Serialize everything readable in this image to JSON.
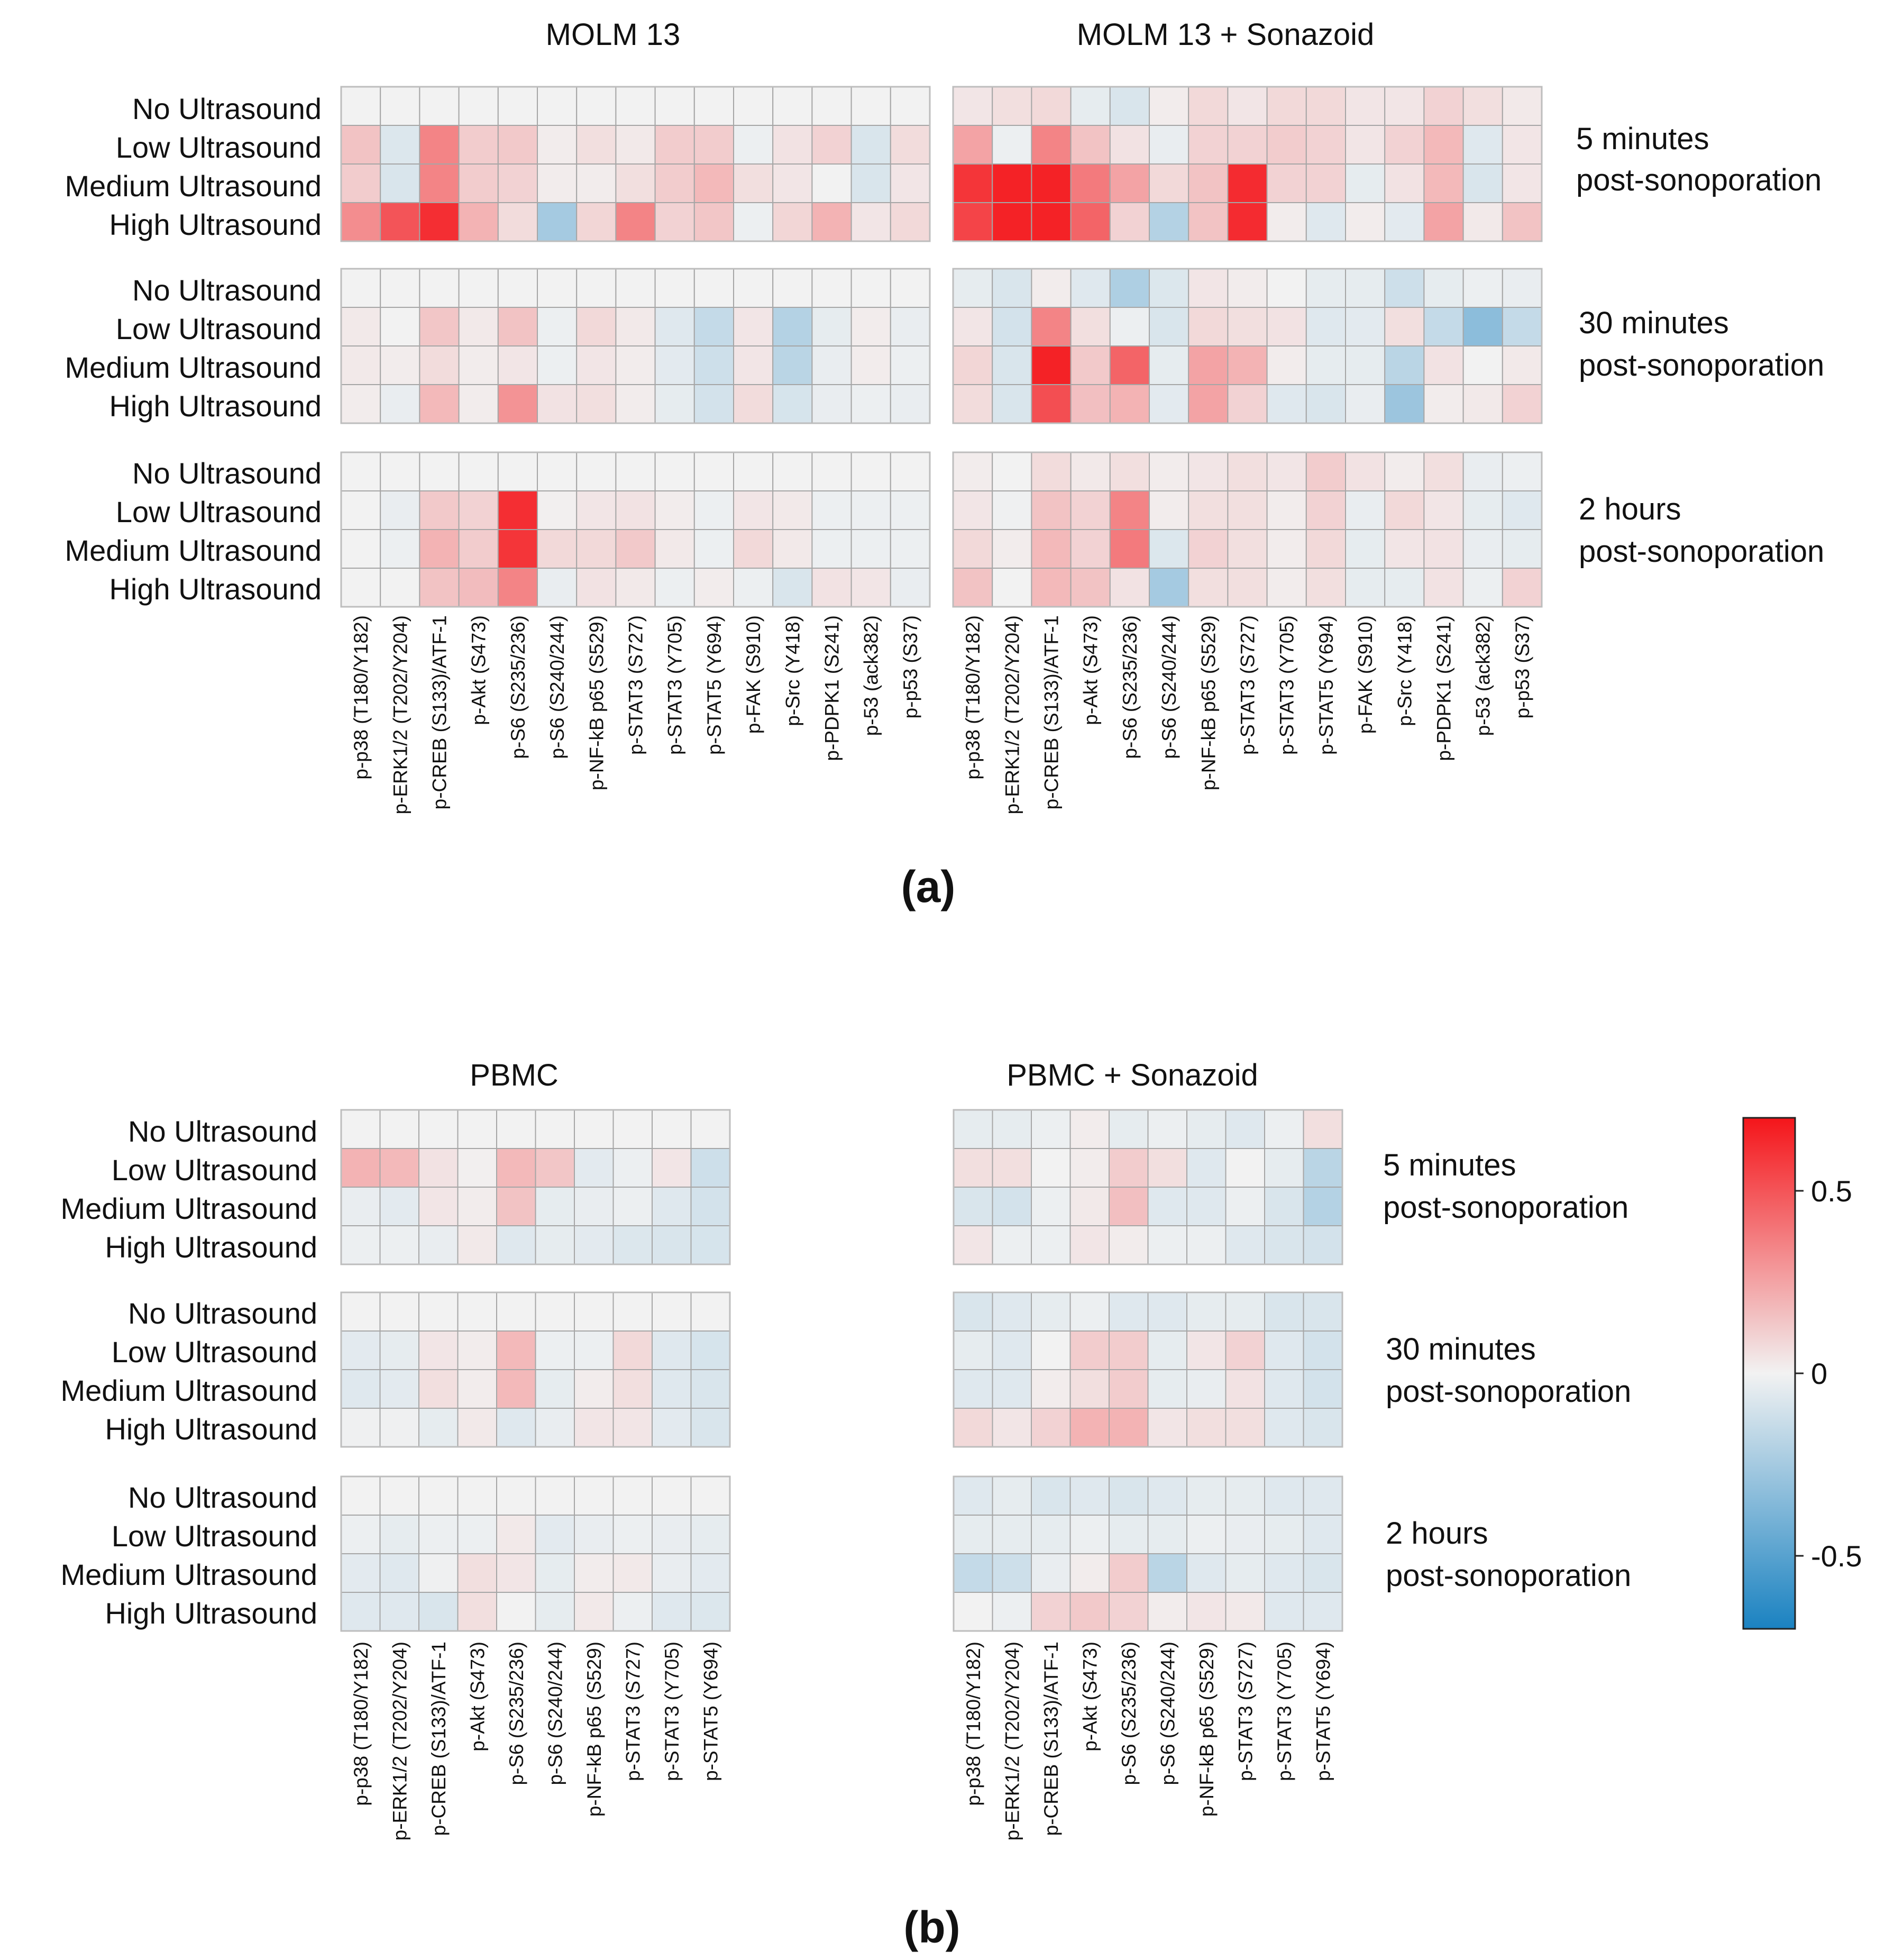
{
  "panels": {
    "a": "(a)",
    "b": "(b)"
  },
  "row_labels": [
    "No Ultrasound",
    "Low Ultrasound",
    "Medium Ultrasound",
    "High Ultrasound"
  ],
  "time_labels": [
    [
      "5 minutes",
      "post-sonoporation"
    ],
    [
      "30 minutes",
      "post-sonoporation"
    ],
    [
      "2 hours",
      "post-sonoporation"
    ]
  ],
  "colorbar": {
    "ticks": [
      0.5,
      0,
      -0.5
    ],
    "tick_labels": [
      "0.5",
      "0",
      "-0.5"
    ],
    "range": [
      -0.7,
      0.7
    ],
    "colors": {
      "neg": "#1a82c1",
      "mid": "#f2f2f2",
      "pos": "#f4151a"
    }
  },
  "chart_data": [
    {
      "type": "heatmap",
      "title": "MOLM 13",
      "columns": [
        "p-p38 (T180/Y182)",
        "p-ERK1/2 (T202/Y204)",
        "p-CREB (S133)/ATF-1",
        "p-Akt (S473)",
        "p-S6 (S235/236)",
        "p-S6 (S240/244)",
        "p-NF-kB p65 (S529)",
        "p-STAT3 (S727)",
        "p-STAT3 (Y705)",
        "p-STAT5 (Y694)",
        "p-FAK (S910)",
        "p-Src (Y418)",
        "p-PDPK1 (S241)",
        "p-53 (ack382)",
        "p-p53 (S37)"
      ],
      "blocks": [
        [
          [
            0,
            0,
            0,
            0,
            0,
            0,
            0,
            0,
            0,
            0,
            0,
            0,
            0,
            0,
            0
          ],
          [
            0.15,
            -0.07,
            0.35,
            0.12,
            0.13,
            0.02,
            0.06,
            0.03,
            0.12,
            0.12,
            -0.02,
            0.05,
            0.1,
            -0.08,
            0.07
          ],
          [
            0.12,
            -0.08,
            0.35,
            0.12,
            0.1,
            0.02,
            0.02,
            0.06,
            0.12,
            0.18,
            0.06,
            0.04,
            0.0,
            -0.08,
            0.04
          ],
          [
            0.32,
            0.5,
            0.62,
            0.2,
            0.07,
            -0.25,
            0.09,
            0.35,
            0.1,
            0.14,
            -0.02,
            0.09,
            0.2,
            0.04,
            0.08
          ]
        ],
        [
          [
            0,
            0,
            0,
            0,
            0,
            0,
            0,
            0,
            0,
            0,
            0,
            0,
            0,
            0,
            0
          ],
          [
            0.03,
            0.0,
            0.14,
            0.03,
            0.15,
            -0.02,
            0.08,
            0.03,
            -0.06,
            -0.15,
            0.04,
            -0.2,
            -0.04,
            0.02,
            -0.03
          ],
          [
            0.03,
            0.02,
            0.07,
            0.02,
            0.04,
            -0.02,
            0.04,
            0.02,
            -0.05,
            -0.12,
            0.04,
            -0.18,
            -0.03,
            0.02,
            -0.02
          ],
          [
            0.02,
            -0.03,
            0.18,
            0.02,
            0.3,
            0.05,
            0.06,
            0.02,
            -0.04,
            -0.1,
            0.07,
            -0.09,
            -0.03,
            -0.02,
            -0.03
          ]
        ],
        [
          [
            0,
            0,
            0,
            0,
            0,
            0,
            0,
            0,
            0,
            0,
            0,
            0,
            0,
            0,
            0
          ],
          [
            0.0,
            -0.03,
            0.13,
            0.1,
            0.62,
            0.01,
            0.04,
            0.05,
            0.02,
            -0.02,
            0.04,
            0.03,
            -0.02,
            -0.02,
            -0.02
          ],
          [
            0.0,
            -0.02,
            0.2,
            0.12,
            0.6,
            0.08,
            0.08,
            0.13,
            0.03,
            -0.02,
            0.08,
            0.03,
            -0.02,
            -0.02,
            -0.02
          ],
          [
            0.0,
            0.0,
            0.15,
            0.17,
            0.35,
            -0.03,
            0.05,
            0.03,
            -0.02,
            0.02,
            -0.02,
            -0.08,
            0.05,
            0.04,
            -0.03
          ]
        ]
      ]
    },
    {
      "type": "heatmap",
      "title": "MOLM 13 + Sonazoid",
      "columns": [
        "p-p38 (T180/Y182)",
        "p-ERK1/2 (T202/Y204)",
        "p-CREB (S133)/ATF-1",
        "p-Akt (S473)",
        "p-S6 (S235/236)",
        "p-S6 (S240/244)",
        "p-NF-kB p65 (S529)",
        "p-STAT3 (S727)",
        "p-STAT3 (Y705)",
        "p-STAT5 (Y694)",
        "p-FAK (S910)",
        "p-Src (Y418)",
        "p-PDPK1 (S241)",
        "p-53 (ack382)",
        "p-p53 (S37)"
      ],
      "blocks": [
        [
          [
            0.04,
            0.06,
            0.08,
            -0.04,
            -0.08,
            0.02,
            0.08,
            0.04,
            0.08,
            0.08,
            0.04,
            0.04,
            0.1,
            0.06,
            0.03
          ],
          [
            0.25,
            -0.02,
            0.35,
            0.15,
            0.05,
            -0.03,
            0.1,
            0.1,
            0.12,
            0.1,
            0.04,
            0.1,
            0.18,
            -0.06,
            0.04
          ],
          [
            0.6,
            0.66,
            0.66,
            0.38,
            0.25,
            0.08,
            0.15,
            0.63,
            0.1,
            0.1,
            -0.04,
            0.05,
            0.18,
            -0.08,
            0.04
          ],
          [
            0.55,
            0.66,
            0.66,
            0.45,
            0.1,
            -0.2,
            0.15,
            0.63,
            0.02,
            -0.06,
            0.02,
            -0.05,
            0.25,
            0.03,
            0.15
          ]
        ],
        [
          [
            -0.04,
            -0.08,
            0.02,
            -0.06,
            -0.22,
            -0.07,
            0.04,
            0.02,
            0.0,
            -0.04,
            -0.04,
            -0.12,
            -0.04,
            -0.02,
            -0.03
          ],
          [
            0.04,
            -0.1,
            0.35,
            0.06,
            -0.02,
            -0.08,
            0.08,
            0.06,
            0.05,
            -0.06,
            -0.05,
            0.06,
            -0.15,
            -0.33,
            -0.15
          ],
          [
            0.09,
            -0.08,
            0.66,
            0.13,
            0.45,
            -0.04,
            0.25,
            0.2,
            0.02,
            -0.04,
            -0.04,
            -0.18,
            0.05,
            0.0,
            0.03
          ],
          [
            0.07,
            -0.08,
            0.52,
            0.16,
            0.2,
            -0.05,
            0.25,
            0.1,
            -0.06,
            -0.08,
            -0.03,
            -0.28,
            0.02,
            0.03,
            0.1
          ]
        ],
        [
          [
            0.02,
            0.0,
            0.07,
            0.03,
            0.06,
            0.02,
            0.04,
            0.06,
            0.04,
            0.12,
            0.05,
            0.02,
            0.06,
            -0.03,
            -0.02
          ],
          [
            0.04,
            -0.01,
            0.15,
            0.1,
            0.35,
            0.02,
            0.06,
            0.06,
            0.02,
            0.1,
            -0.03,
            0.08,
            0.04,
            -0.04,
            -0.06
          ],
          [
            0.08,
            0.02,
            0.18,
            0.1,
            0.38,
            -0.07,
            0.1,
            0.06,
            0.02,
            0.08,
            -0.04,
            0.04,
            0.05,
            -0.03,
            -0.04
          ],
          [
            0.15,
            0.0,
            0.18,
            0.15,
            0.05,
            -0.25,
            0.06,
            0.06,
            0.02,
            0.06,
            -0.04,
            -0.04,
            0.05,
            -0.02,
            0.1
          ]
        ]
      ]
    },
    {
      "type": "heatmap",
      "title": "PBMC",
      "columns": [
        "p-p38 (T180/Y182)",
        "p-ERK1/2 (T202/Y204)",
        "p-CREB (S133)/ATF-1",
        "p-Akt (S473)",
        "p-S6 (S235/236)",
        "p-S6 (S240/244)",
        "p-NF-kB p65 (S529)",
        "p-STAT3 (S727)",
        "p-STAT3 (Y705)",
        "p-STAT5 (Y694)"
      ],
      "blocks": [
        [
          [
            0,
            0,
            0,
            0,
            0,
            0,
            0,
            0,
            0,
            0
          ],
          [
            0.2,
            0.18,
            0.05,
            0.01,
            0.18,
            0.14,
            -0.05,
            -0.02,
            0.04,
            -0.12
          ],
          [
            -0.03,
            -0.05,
            0.04,
            0.02,
            0.15,
            -0.04,
            -0.03,
            -0.02,
            -0.06,
            -0.1
          ],
          [
            -0.02,
            -0.02,
            -0.03,
            0.03,
            -0.06,
            -0.04,
            -0.05,
            -0.07,
            -0.08,
            -0.09
          ]
        ],
        [
          [
            0,
            0,
            0,
            0,
            0,
            0,
            0,
            0,
            0,
            0
          ],
          [
            -0.05,
            -0.04,
            0.04,
            0.02,
            0.18,
            -0.02,
            -0.02,
            0.08,
            -0.06,
            -0.09
          ],
          [
            -0.06,
            -0.05,
            0.06,
            0.02,
            0.18,
            -0.04,
            0.02,
            0.06,
            -0.06,
            -0.08
          ],
          [
            -0.01,
            -0.01,
            -0.04,
            0.03,
            -0.06,
            -0.03,
            0.04,
            0.04,
            -0.05,
            -0.08
          ]
        ],
        [
          [
            0,
            0,
            0,
            0,
            0,
            0,
            0,
            0,
            0,
            0
          ],
          [
            -0.02,
            -0.04,
            -0.02,
            -0.02,
            0.03,
            -0.05,
            -0.03,
            -0.02,
            -0.03,
            -0.04
          ],
          [
            -0.05,
            -0.06,
            -0.01,
            0.06,
            0.04,
            -0.04,
            0.02,
            0.03,
            -0.03,
            -0.05
          ],
          [
            -0.06,
            -0.06,
            -0.08,
            0.06,
            0.0,
            -0.04,
            0.03,
            -0.02,
            -0.06,
            -0.07
          ]
        ]
      ]
    },
    {
      "type": "heatmap",
      "title": "PBMC + Sonazoid",
      "columns": [
        "p-p38 (T180/Y182)",
        "p-ERK1/2 (T202/Y204)",
        "p-CREB (S133)/ATF-1",
        "p-Akt (S473)",
        "p-S6 (S235/236)",
        "p-S6 (S240/244)",
        "p-NF-kB p65 (S529)",
        "p-STAT3 (S727)",
        "p-STAT3 (Y705)",
        "p-STAT5 (Y694)"
      ],
      "blocks": [
        [
          [
            -0.04,
            -0.04,
            -0.02,
            0.02,
            -0.04,
            -0.02,
            -0.04,
            -0.06,
            -0.02,
            0.06
          ],
          [
            0.06,
            0.06,
            0.0,
            0.02,
            0.12,
            0.06,
            -0.06,
            0.0,
            -0.04,
            -0.18
          ],
          [
            -0.08,
            -0.1,
            -0.02,
            0.03,
            0.16,
            -0.06,
            -0.06,
            -0.02,
            -0.08,
            -0.2
          ],
          [
            0.04,
            -0.02,
            -0.02,
            0.04,
            0.02,
            -0.02,
            -0.02,
            -0.06,
            -0.08,
            -0.1
          ]
        ],
        [
          [
            -0.08,
            -0.06,
            -0.04,
            -0.02,
            -0.06,
            -0.06,
            -0.04,
            -0.04,
            -0.08,
            -0.08
          ],
          [
            -0.04,
            -0.06,
            0.0,
            0.12,
            0.12,
            -0.04,
            0.04,
            0.1,
            -0.06,
            -0.1
          ],
          [
            -0.06,
            -0.06,
            0.02,
            0.06,
            0.12,
            -0.04,
            -0.03,
            0.05,
            -0.06,
            -0.1
          ],
          [
            0.08,
            0.04,
            0.1,
            0.2,
            0.2,
            0.04,
            0.06,
            0.06,
            -0.06,
            -0.08
          ]
        ],
        [
          [
            -0.06,
            -0.04,
            -0.08,
            -0.06,
            -0.08,
            -0.06,
            -0.04,
            -0.04,
            -0.06,
            -0.06
          ],
          [
            -0.04,
            -0.04,
            -0.04,
            -0.02,
            -0.04,
            -0.04,
            -0.02,
            -0.03,
            -0.04,
            -0.06
          ],
          [
            -0.15,
            -0.12,
            -0.03,
            0.02,
            0.12,
            -0.18,
            -0.06,
            -0.04,
            -0.06,
            -0.08
          ],
          [
            0.0,
            -0.02,
            0.1,
            0.13,
            0.1,
            0.02,
            0.04,
            0.03,
            -0.06,
            -0.06
          ]
        ]
      ]
    }
  ]
}
